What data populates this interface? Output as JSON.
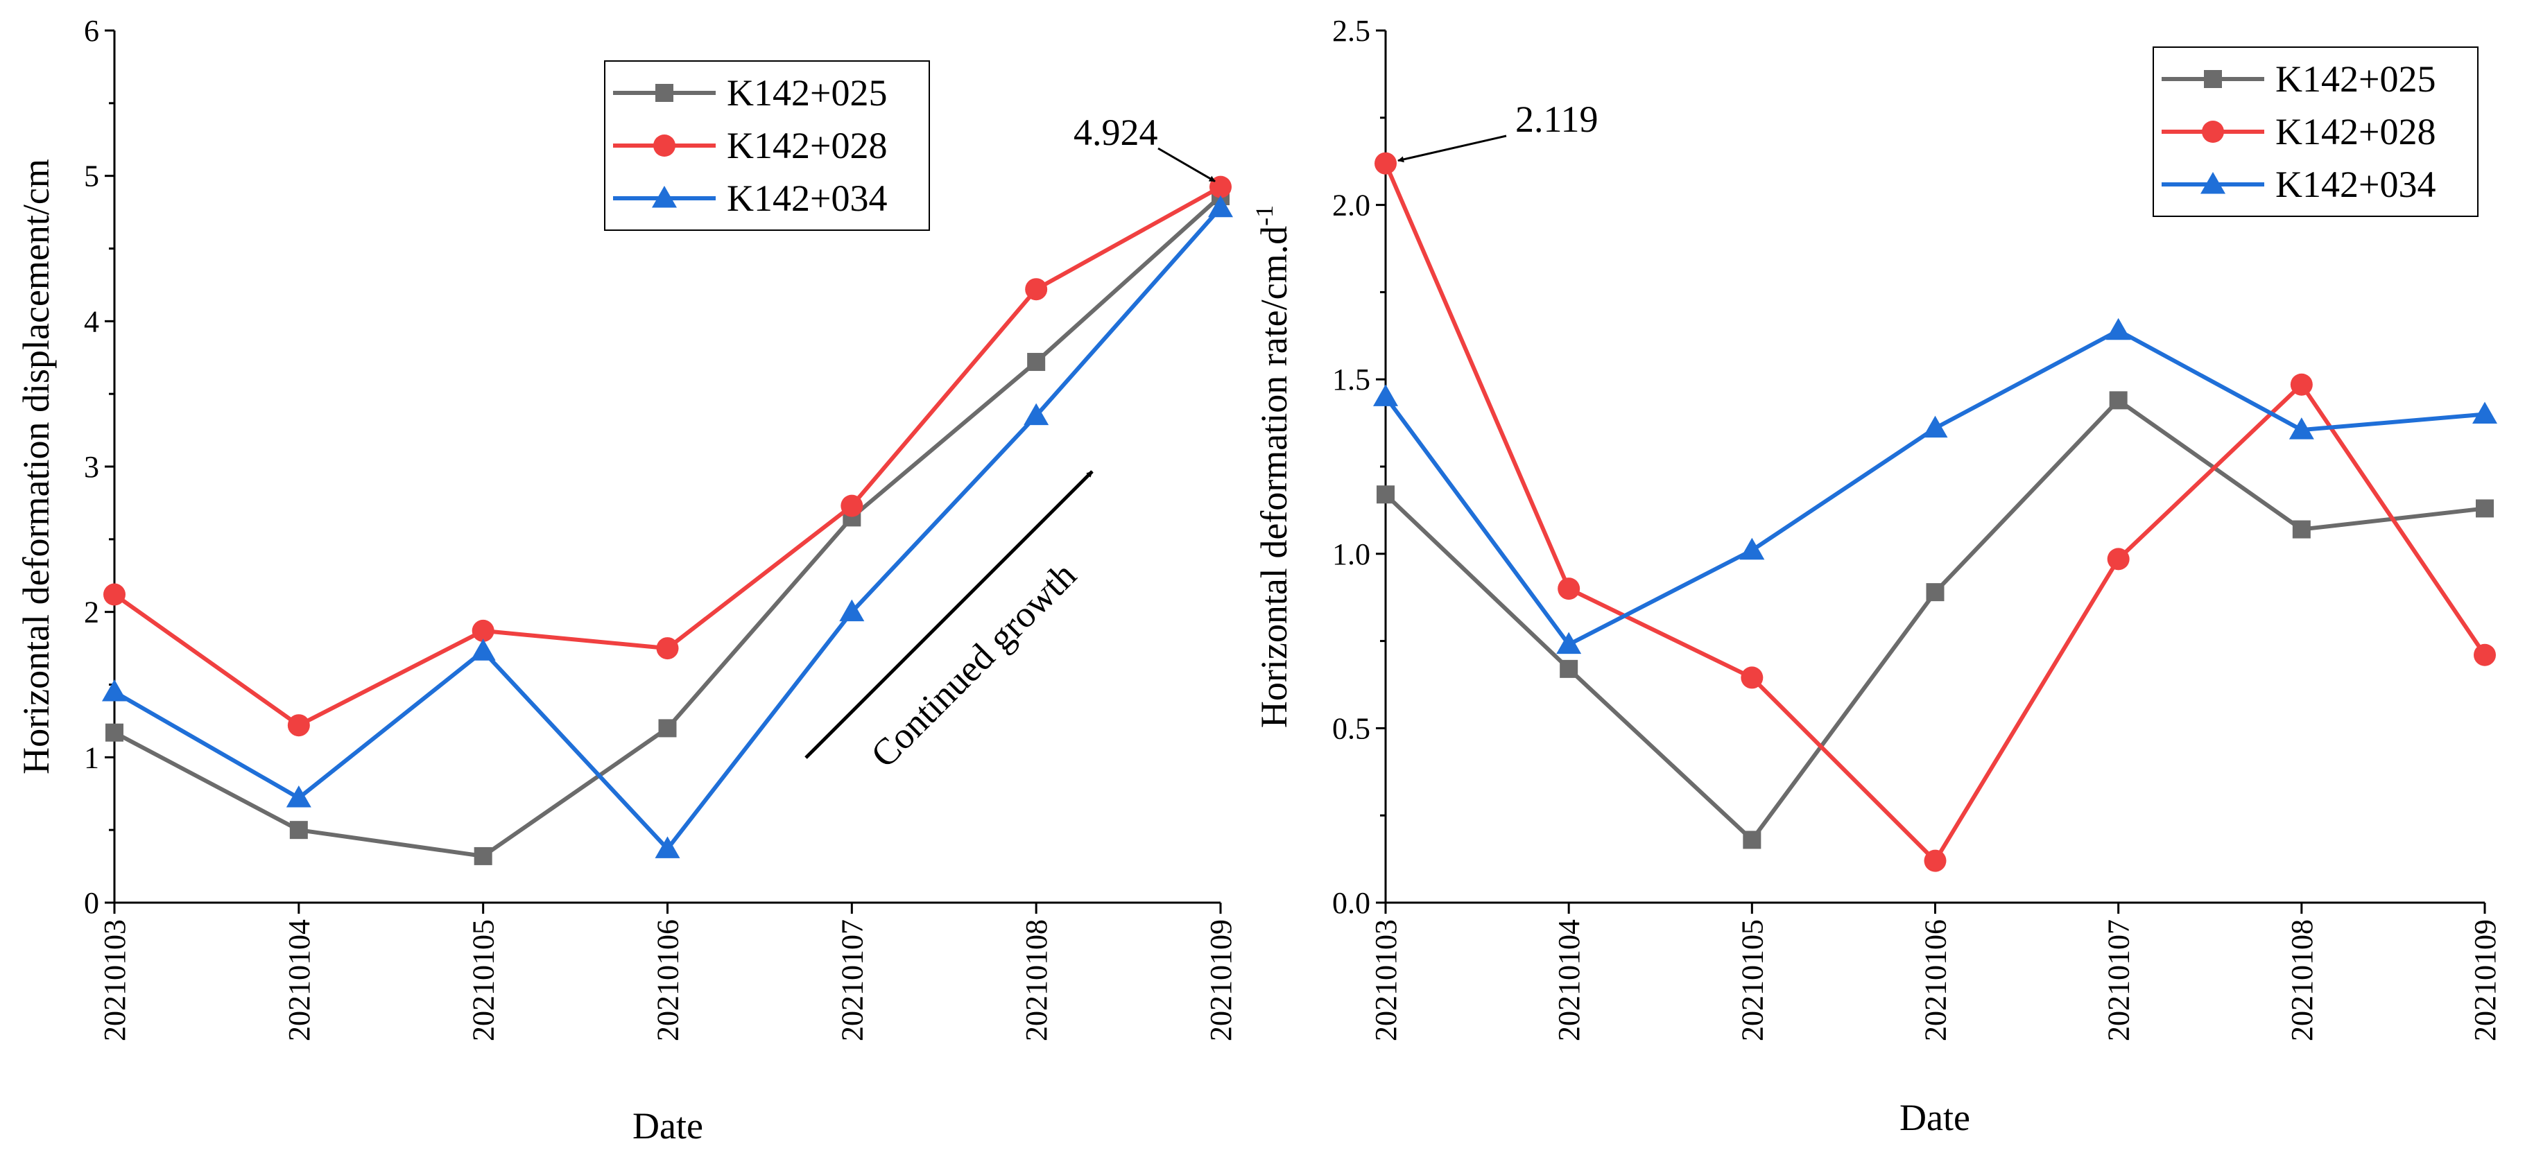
{
  "chart_data": [
    {
      "type": "line",
      "xlabel": "Date",
      "ylabel": "Horizontal deformation displacement/cm",
      "categories": [
        "20210103",
        "20210104",
        "20210105",
        "20210106",
        "20210107",
        "20210108",
        "20210109"
      ],
      "ylim": [
        0,
        6
      ],
      "yticks": [
        "0",
        "1",
        "2",
        "3",
        "4",
        "5",
        "6"
      ],
      "legend_position": "top-right",
      "series": [
        {
          "name": "K142+025",
          "color": "#6b6b6b",
          "marker": "square",
          "values": [
            1.17,
            0.5,
            0.32,
            1.2,
            2.65,
            3.72,
            4.86
          ]
        },
        {
          "name": "K142+028",
          "color": "#f04040",
          "marker": "circle",
          "values": [
            2.12,
            1.22,
            1.87,
            1.75,
            2.73,
            4.22,
            4.924
          ]
        },
        {
          "name": "K142+034",
          "color": "#1f6fd8",
          "marker": "triangle",
          "values": [
            1.45,
            0.72,
            1.73,
            0.37,
            2.0,
            3.35,
            4.78
          ]
        }
      ],
      "annotations": [
        {
          "text": "4.924"
        },
        {
          "text": "Continued growth"
        }
      ]
    },
    {
      "type": "line",
      "xlabel": "Date",
      "ylabel": "Horizontal deformation rate/cm.d",
      "ylabel_superscript": "-1",
      "categories": [
        "20210103",
        "20210104",
        "20210105",
        "20210106",
        "20210107",
        "20210108",
        "20210109"
      ],
      "ylim": [
        0,
        2.5
      ],
      "yticks": [
        "0.0",
        "0.5",
        "1.0",
        "1.5",
        "2.0",
        "2.5"
      ],
      "legend_position": "top-right",
      "series": [
        {
          "name": "K142+025",
          "color": "#6b6b6b",
          "marker": "square",
          "values": [
            1.17,
            0.67,
            0.18,
            0.89,
            1.44,
            1.07,
            1.13
          ]
        },
        {
          "name": "K142+028",
          "color": "#f04040",
          "marker": "circle",
          "values": [
            2.119,
            0.9,
            0.645,
            0.12,
            0.985,
            1.485,
            0.71
          ]
        },
        {
          "name": "K142+034",
          "color": "#1f6fd8",
          "marker": "triangle",
          "values": [
            1.45,
            0.74,
            1.01,
            1.36,
            1.64,
            1.355,
            1.4
          ]
        }
      ],
      "annotations": [
        {
          "text": "2.119"
        }
      ]
    }
  ]
}
